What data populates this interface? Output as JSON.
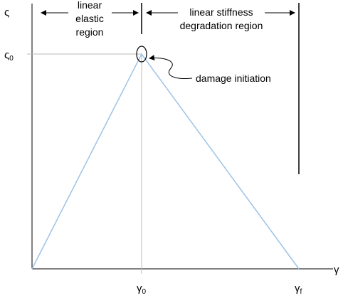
{
  "axes": {
    "y_label": "ς",
    "x_label": "γ"
  },
  "ticks": {
    "peak_traction": {
      "symbol": "ς",
      "subscript": "0"
    },
    "peak_separation": {
      "symbol": "γ",
      "subscript": "0"
    },
    "final_separation": {
      "symbol": "γ",
      "subscript": "f"
    }
  },
  "regions": [
    {
      "lines": [
        "linear",
        "elastic",
        "region"
      ]
    },
    {
      "lines": [
        "linear stiffness",
        "degradation region"
      ]
    }
  ],
  "annotation": "damage initiation"
}
